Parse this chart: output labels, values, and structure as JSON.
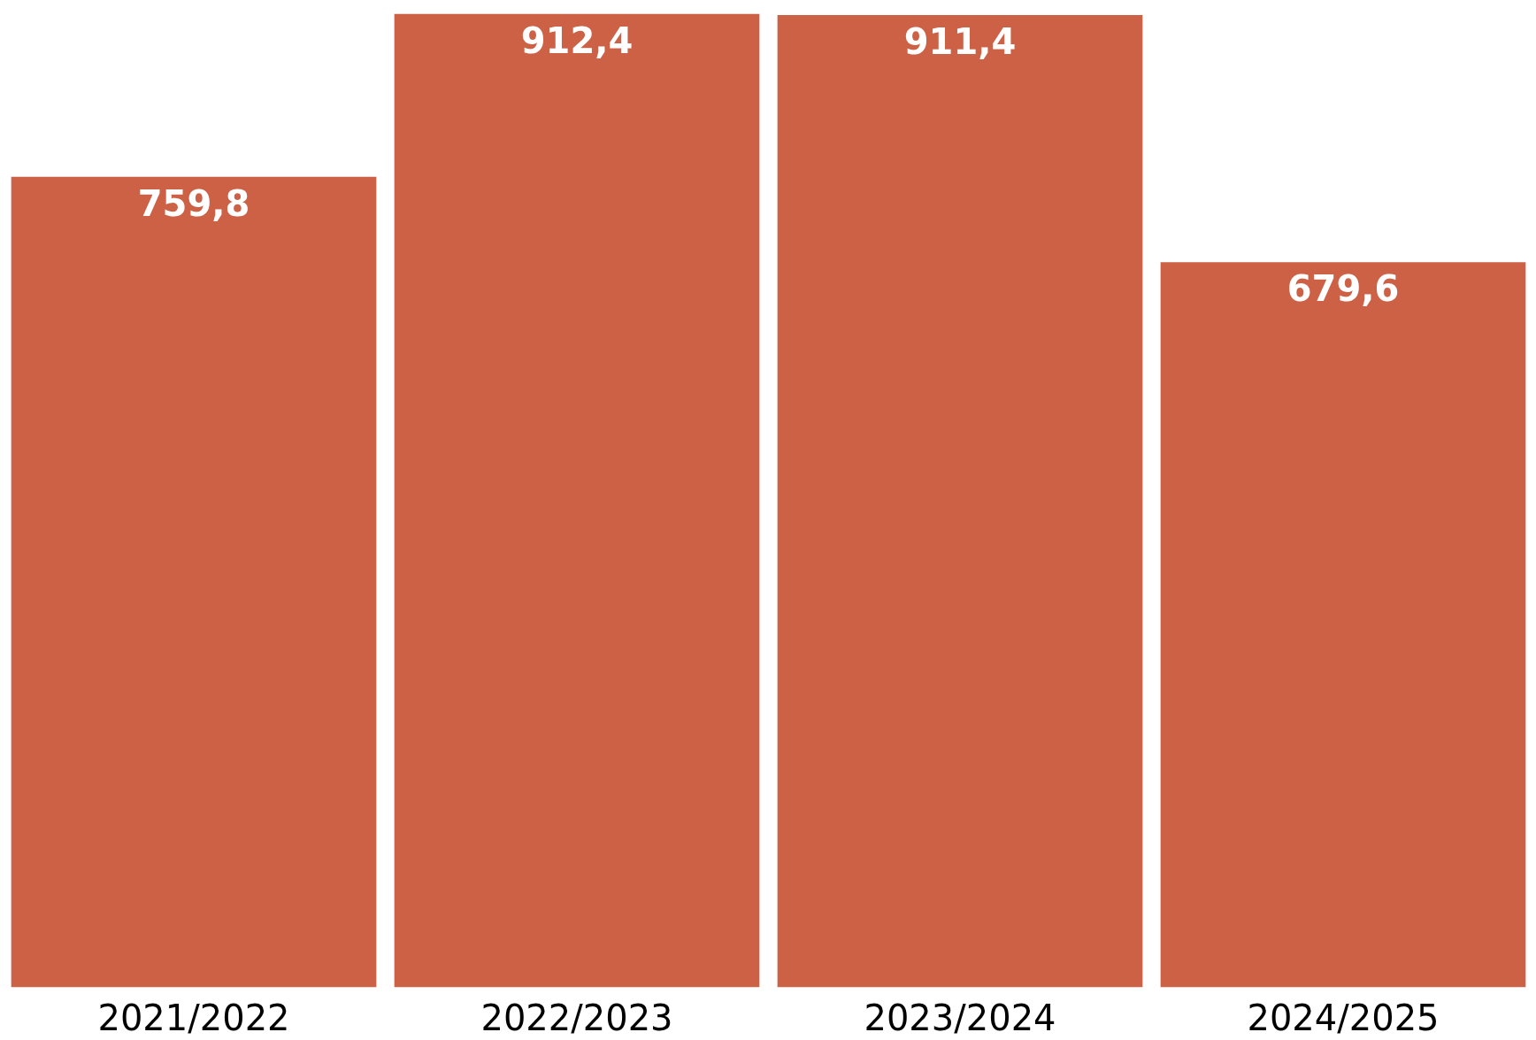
{
  "chart_data": {
    "type": "bar",
    "categories": [
      "2021/2022",
      "2022/2023",
      "2023/2024",
      "2024/2025"
    ],
    "values": [
      759.8,
      912.4,
      911.4,
      679.6
    ],
    "value_labels": [
      "759,8",
      "912,4",
      "911,4",
      "679,6"
    ],
    "color": "#cc6146",
    "grid": false
  }
}
